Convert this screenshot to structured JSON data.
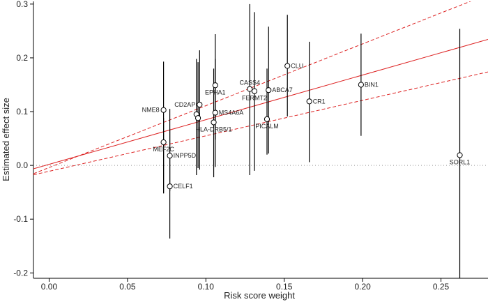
{
  "chart_data": {
    "type": "scatter",
    "xlabel": "Risk score weight",
    "ylabel": "Estimated effect size",
    "xlim": [
      -0.01,
      0.28
    ],
    "ylim": [
      -0.21,
      0.305
    ],
    "x_ticks": [
      0.0,
      0.05,
      0.1,
      0.15,
      0.2,
      0.25
    ],
    "x_tick_labels": [
      "0.00",
      "0.05",
      "0.10",
      "0.15",
      "0.20",
      "0.25"
    ],
    "y_ticks": [
      -0.2,
      -0.1,
      0.0,
      0.1,
      0.2,
      0.3
    ],
    "y_tick_labels": [
      "-0.2",
      "-0.1",
      "0.0",
      "0.1",
      "0.2",
      "0.3"
    ],
    "grid": false,
    "reference_line": {
      "y": 0,
      "style": "dotted",
      "color": "#999999"
    },
    "fit": {
      "color": "#dd2222",
      "intercept": 0.002,
      "slope": 0.83,
      "ci_upper": {
        "intercept": -0.004,
        "slope": 1.15
      },
      "ci_lower": {
        "intercept": -0.011,
        "slope": 0.66
      }
    },
    "points": [
      {
        "label": "NME8",
        "x": 0.073,
        "y": 0.103,
        "lo": -0.052,
        "hi": 0.193,
        "label_side": "left"
      },
      {
        "label": "MEF2C",
        "x": 0.073,
        "y": 0.043,
        "lo": -0.052,
        "hi": 0.088,
        "label_side": "below-left"
      },
      {
        "label": "INPP5D",
        "x": 0.077,
        "y": 0.018,
        "lo": -0.048,
        "hi": 0.105,
        "label_side": "right"
      },
      {
        "label": "CELF1",
        "x": 0.077,
        "y": -0.039,
        "lo": -0.136,
        "hi": 0.068,
        "label_side": "right"
      },
      {
        "label": "CD2AP",
        "x": 0.096,
        "y": 0.113,
        "lo": -0.008,
        "hi": 0.214,
        "label_side": "left"
      },
      {
        "label": "",
        "x": 0.094,
        "y": 0.095,
        "lo": -0.018,
        "hi": 0.198,
        "label_side": "none"
      },
      {
        "label": "",
        "x": 0.095,
        "y": 0.088,
        "lo": -0.005,
        "hi": 0.192,
        "label_side": "none"
      },
      {
        "label": "EPHA1",
        "x": 0.106,
        "y": 0.149,
        "lo": 0.048,
        "hi": 0.244,
        "label_side": "below"
      },
      {
        "label": "MS4A6A",
        "x": 0.106,
        "y": 0.098,
        "lo": -0.003,
        "hi": 0.198,
        "label_side": "right"
      },
      {
        "label": "HLA-DRB5/1",
        "x": 0.105,
        "y": 0.08,
        "lo": -0.022,
        "hi": 0.18,
        "label_side": "below"
      },
      {
        "label": "CASS4",
        "x": 0.128,
        "y": 0.142,
        "lo": -0.018,
        "hi": 0.3,
        "label_side": "above"
      },
      {
        "label": "FERMT2",
        "x": 0.131,
        "y": 0.138,
        "lo": -0.01,
        "hi": 0.285,
        "label_side": "below"
      },
      {
        "label": "ABCA7",
        "x": 0.14,
        "y": 0.14,
        "lo": 0.022,
        "hi": 0.258,
        "label_side": "right"
      },
      {
        "label": "PICALM",
        "x": 0.139,
        "y": 0.086,
        "lo": 0.02,
        "hi": 0.18,
        "label_side": "below"
      },
      {
        "label": "CLU",
        "x": 0.152,
        "y": 0.185,
        "lo": 0.091,
        "hi": 0.28,
        "label_side": "right"
      },
      {
        "label": "CR1",
        "x": 0.166,
        "y": 0.119,
        "lo": 0.006,
        "hi": 0.23,
        "label_side": "right"
      },
      {
        "label": "BIN1",
        "x": 0.199,
        "y": 0.15,
        "lo": 0.055,
        "hi": 0.245,
        "label_side": "right"
      },
      {
        "label": "SORL1",
        "x": 0.262,
        "y": 0.019,
        "lo": -0.215,
        "hi": 0.254,
        "label_side": "below"
      }
    ]
  }
}
